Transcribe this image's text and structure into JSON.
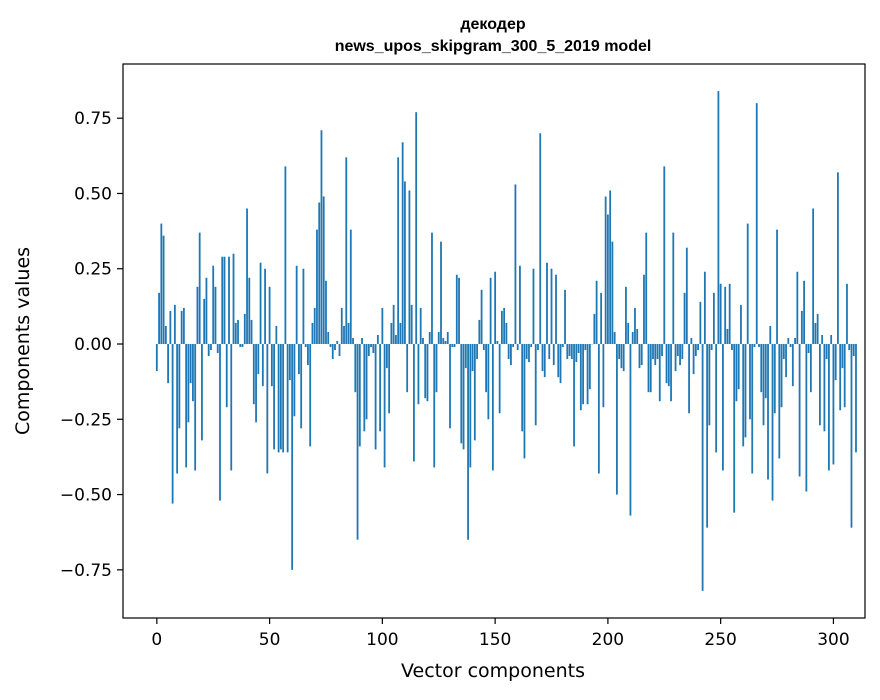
{
  "chart_data": {
    "type": "bar",
    "title": "декодер",
    "subtitle": "news_upos_skipgram_300_5_2019 model",
    "xlabel": "Vector components",
    "ylabel": "Components values",
    "xlim": [
      -15,
      314
    ],
    "ylim": [
      -0.91,
      0.93
    ],
    "xticks": [
      0,
      50,
      100,
      150,
      200,
      250,
      300
    ],
    "yticks": [
      -0.75,
      -0.5,
      -0.25,
      0.0,
      0.25,
      0.5,
      0.75
    ],
    "ytick_labels": [
      "−0.75",
      "−0.50",
      "−0.25",
      "0.00",
      "0.25",
      "0.50",
      "0.75"
    ],
    "grid": false,
    "bar_color": "#1f77b4",
    "series": [
      {
        "values": [
          -0.09,
          0.17,
          0.4,
          0.36,
          0.06,
          -0.13,
          0.11,
          -0.53,
          0.13,
          -0.43,
          -0.28,
          0.11,
          0.12,
          -0.41,
          -0.26,
          -0.13,
          -0.19,
          -0.42,
          0.19,
          0.37,
          -0.32,
          0.15,
          0.22,
          -0.04,
          -0.02,
          0.26,
          0.19,
          -0.03,
          -0.52,
          0.29,
          0.29,
          -0.21,
          0.29,
          -0.42,
          0.3,
          0.07,
          0.08,
          -0.01,
          -0.01,
          0.1,
          0.45,
          0.22,
          0.08,
          -0.2,
          -0.26,
          -0.1,
          0.27,
          -0.14,
          0.25,
          -0.43,
          0.19,
          -0.14,
          -0.35,
          0.06,
          -0.36,
          -0.35,
          -0.36,
          0.59,
          -0.36,
          -0.12,
          -0.75,
          -0.24,
          0.26,
          -0.1,
          -0.28,
          0.25,
          -0.01,
          -0.07,
          -0.34,
          0.07,
          0.12,
          0.38,
          0.47,
          0.71,
          0.49,
          0.21,
          0.04,
          -0.01,
          -0.05,
          -0.02,
          0.01,
          -0.04,
          0.12,
          0.06,
          0.62,
          0.07,
          0.38,
          0.02,
          -0.16,
          -0.65,
          -0.34,
          0.02,
          -0.29,
          -0.25,
          -0.04,
          -0.01,
          -0.03,
          -0.35,
          0.03,
          -0.29,
          0.12,
          -0.41,
          -0.08,
          -0.23,
          0.07,
          0.13,
          0.03,
          0.62,
          0.07,
          0.67,
          0.54,
          -0.16,
          0.51,
          0.13,
          -0.39,
          0.77,
          -0.2,
          0.12,
          0.02,
          -0.18,
          -0.19,
          0.04,
          0.37,
          -0.41,
          -0.16,
          0.04,
          0.34,
          0.02,
          0.01,
          0.04,
          -0.28,
          -0.01,
          -0.01,
          0.23,
          0.22,
          -0.33,
          -0.35,
          -0.08,
          -0.65,
          -0.41,
          -0.09,
          -0.32,
          -0.05,
          0.08,
          0.18,
          -0.02,
          -0.16,
          -0.25,
          0.22,
          -0.42,
          0.24,
          0.01,
          -0.23,
          0.11,
          0.12,
          0.07,
          -0.05,
          -0.07,
          -0.01,
          0.53,
          -0.02,
          0.26,
          -0.29,
          -0.38,
          -0.05,
          -0.06,
          -0.01,
          0.25,
          -0.27,
          -0.02,
          0.7,
          -0.09,
          -0.11,
          0.27,
          -0.05,
          0.25,
          -0.07,
          0.23,
          -0.11,
          -0.13,
          -0.01,
          0.18,
          -0.05,
          -0.04,
          -0.05,
          -0.34,
          -0.06,
          -0.03,
          -0.22,
          -0.2,
          -0.02,
          -0.2,
          -0.15,
          0.0,
          0.1,
          0.21,
          -0.43,
          0.17,
          -0.21,
          0.49,
          0.43,
          0.51,
          0.34,
          0.04,
          -0.5,
          -0.05,
          -0.08,
          -0.09,
          0.19,
          0.07,
          -0.57,
          0.04,
          0.12,
          0.05,
          -0.08,
          -0.07,
          0.23,
          0.37,
          -0.16,
          -0.16,
          -0.05,
          -0.07,
          -0.05,
          -0.19,
          -0.04,
          0.59,
          -0.13,
          -0.14,
          -0.19,
          0.37,
          -0.09,
          -0.04,
          -0.07,
          -0.05,
          0.17,
          0.32,
          -0.23,
          0.02,
          -0.1,
          -0.04,
          -0.02,
          0.14,
          -0.82,
          0.24,
          -0.61,
          -0.27,
          -0.02,
          0.17,
          -0.36,
          0.84,
          0.2,
          -0.42,
          0.19,
          0.05,
          0.2,
          -0.02,
          -0.56,
          -0.19,
          -0.15,
          0.13,
          -0.34,
          -0.31,
          0.4,
          -0.25,
          -0.43,
          -0.01,
          0.8,
          -0.01,
          -0.16,
          -0.27,
          -0.18,
          -0.45,
          0.06,
          -0.52,
          -0.23,
          0.38,
          -0.38,
          -0.21,
          -0.05,
          -0.11,
          0.02,
          -0.01,
          -0.14,
          0.02,
          0.24,
          -0.44,
          0.11,
          0.21,
          -0.49,
          -0.03,
          -0.16,
          0.45,
          0.07,
          0.1,
          -0.27,
          0.03,
          -0.29,
          -0.05,
          -0.42,
          0.03,
          -0.4,
          -0.12,
          0.57,
          -0.22,
          -0.08,
          -0.21,
          0.2,
          -0.02,
          -0.61,
          -0.04,
          -0.36
        ]
      }
    ]
  }
}
